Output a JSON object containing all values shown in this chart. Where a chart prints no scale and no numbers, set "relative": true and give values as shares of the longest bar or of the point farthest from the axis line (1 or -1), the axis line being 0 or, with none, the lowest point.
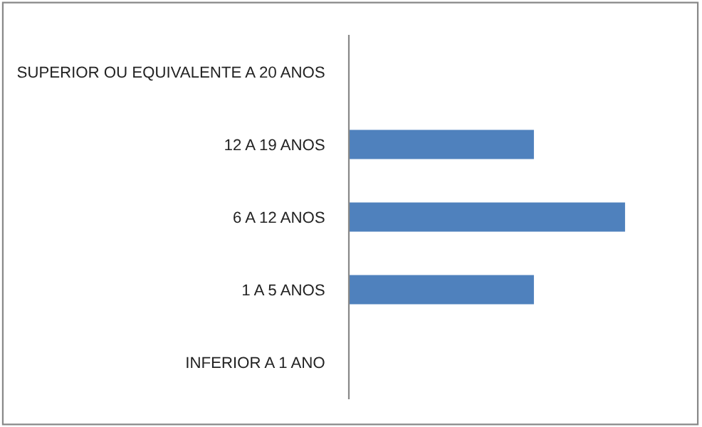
{
  "chart_data": {
    "type": "bar",
    "orientation": "horizontal",
    "relative": true,
    "categories": [
      "SUPERIOR OU EQUIVALENTE A 20 ANOS",
      "12 A 19 ANOS",
      "6 A 12 ANOS",
      "1 A 5 ANOS",
      "INFERIOR A 1 ANO"
    ],
    "values": [
      0,
      0.67,
      1,
      0.67,
      0
    ],
    "color": "#4f81bd",
    "grid": false,
    "legend": false
  }
}
